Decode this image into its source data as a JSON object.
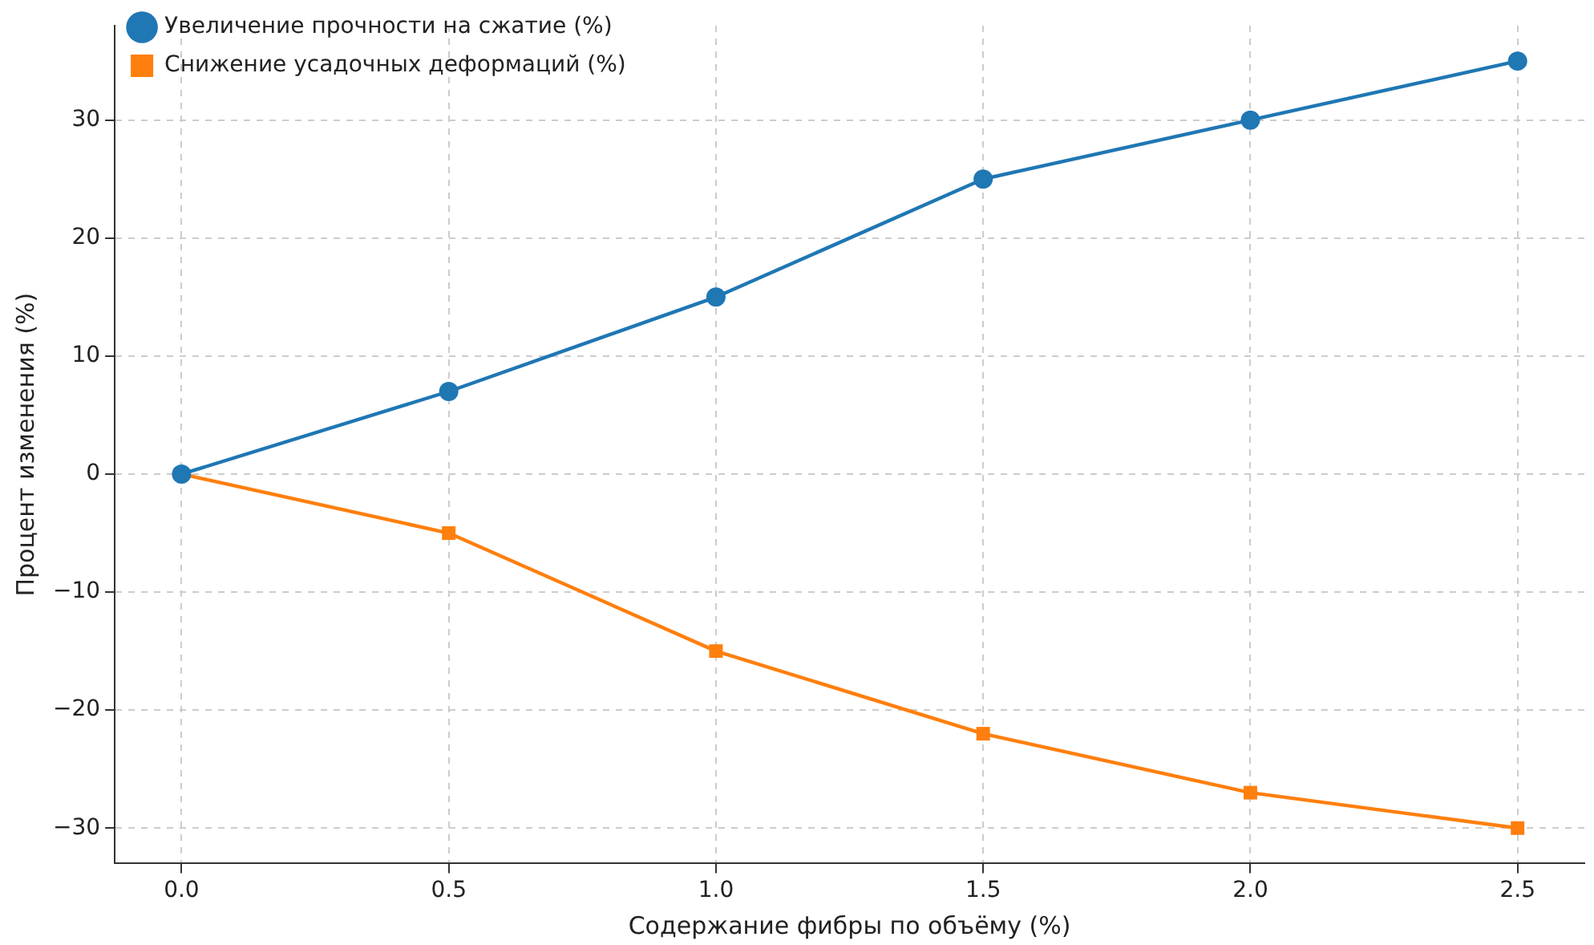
{
  "chart_data": {
    "type": "line",
    "xlabel": "Содержание фибры по объёму (%)",
    "ylabel": "Процент изменения (%)",
    "x": [
      0.0,
      0.5,
      1.0,
      1.5,
      2.0,
      2.5
    ],
    "series": [
      {
        "name": "Увеличение прочности на сжатие (%)",
        "color": "#1f77b4",
        "marker": "circle",
        "values": [
          0,
          7,
          15,
          25,
          30,
          35
        ]
      },
      {
        "name": "Снижение усадочных деформаций (%)",
        "color": "#ff7f0e",
        "marker": "square",
        "values": [
          0,
          -5,
          -15,
          -22,
          -27,
          -30
        ]
      }
    ],
    "xlim": [
      -0.125,
      2.625
    ],
    "xticks": [
      {
        "value": 0,
        "label": "0.0"
      },
      {
        "value": 0.5,
        "label": "0.5"
      },
      {
        "value": 1,
        "label": "1.0"
      },
      {
        "value": 1.5,
        "label": "1.5"
      },
      {
        "value": 2,
        "label": "2.0"
      },
      {
        "value": 2.5,
        "label": "2.5"
      }
    ],
    "ylim": [
      -33,
      38
    ],
    "yticks": [
      {
        "value": -30,
        "label": "−30"
      },
      {
        "value": -20,
        "label": "−20"
      },
      {
        "value": -10,
        "label": "−10"
      },
      0,
      10,
      20,
      30
    ],
    "grid": true,
    "legend": "top left",
    "line_style": "solid"
  }
}
